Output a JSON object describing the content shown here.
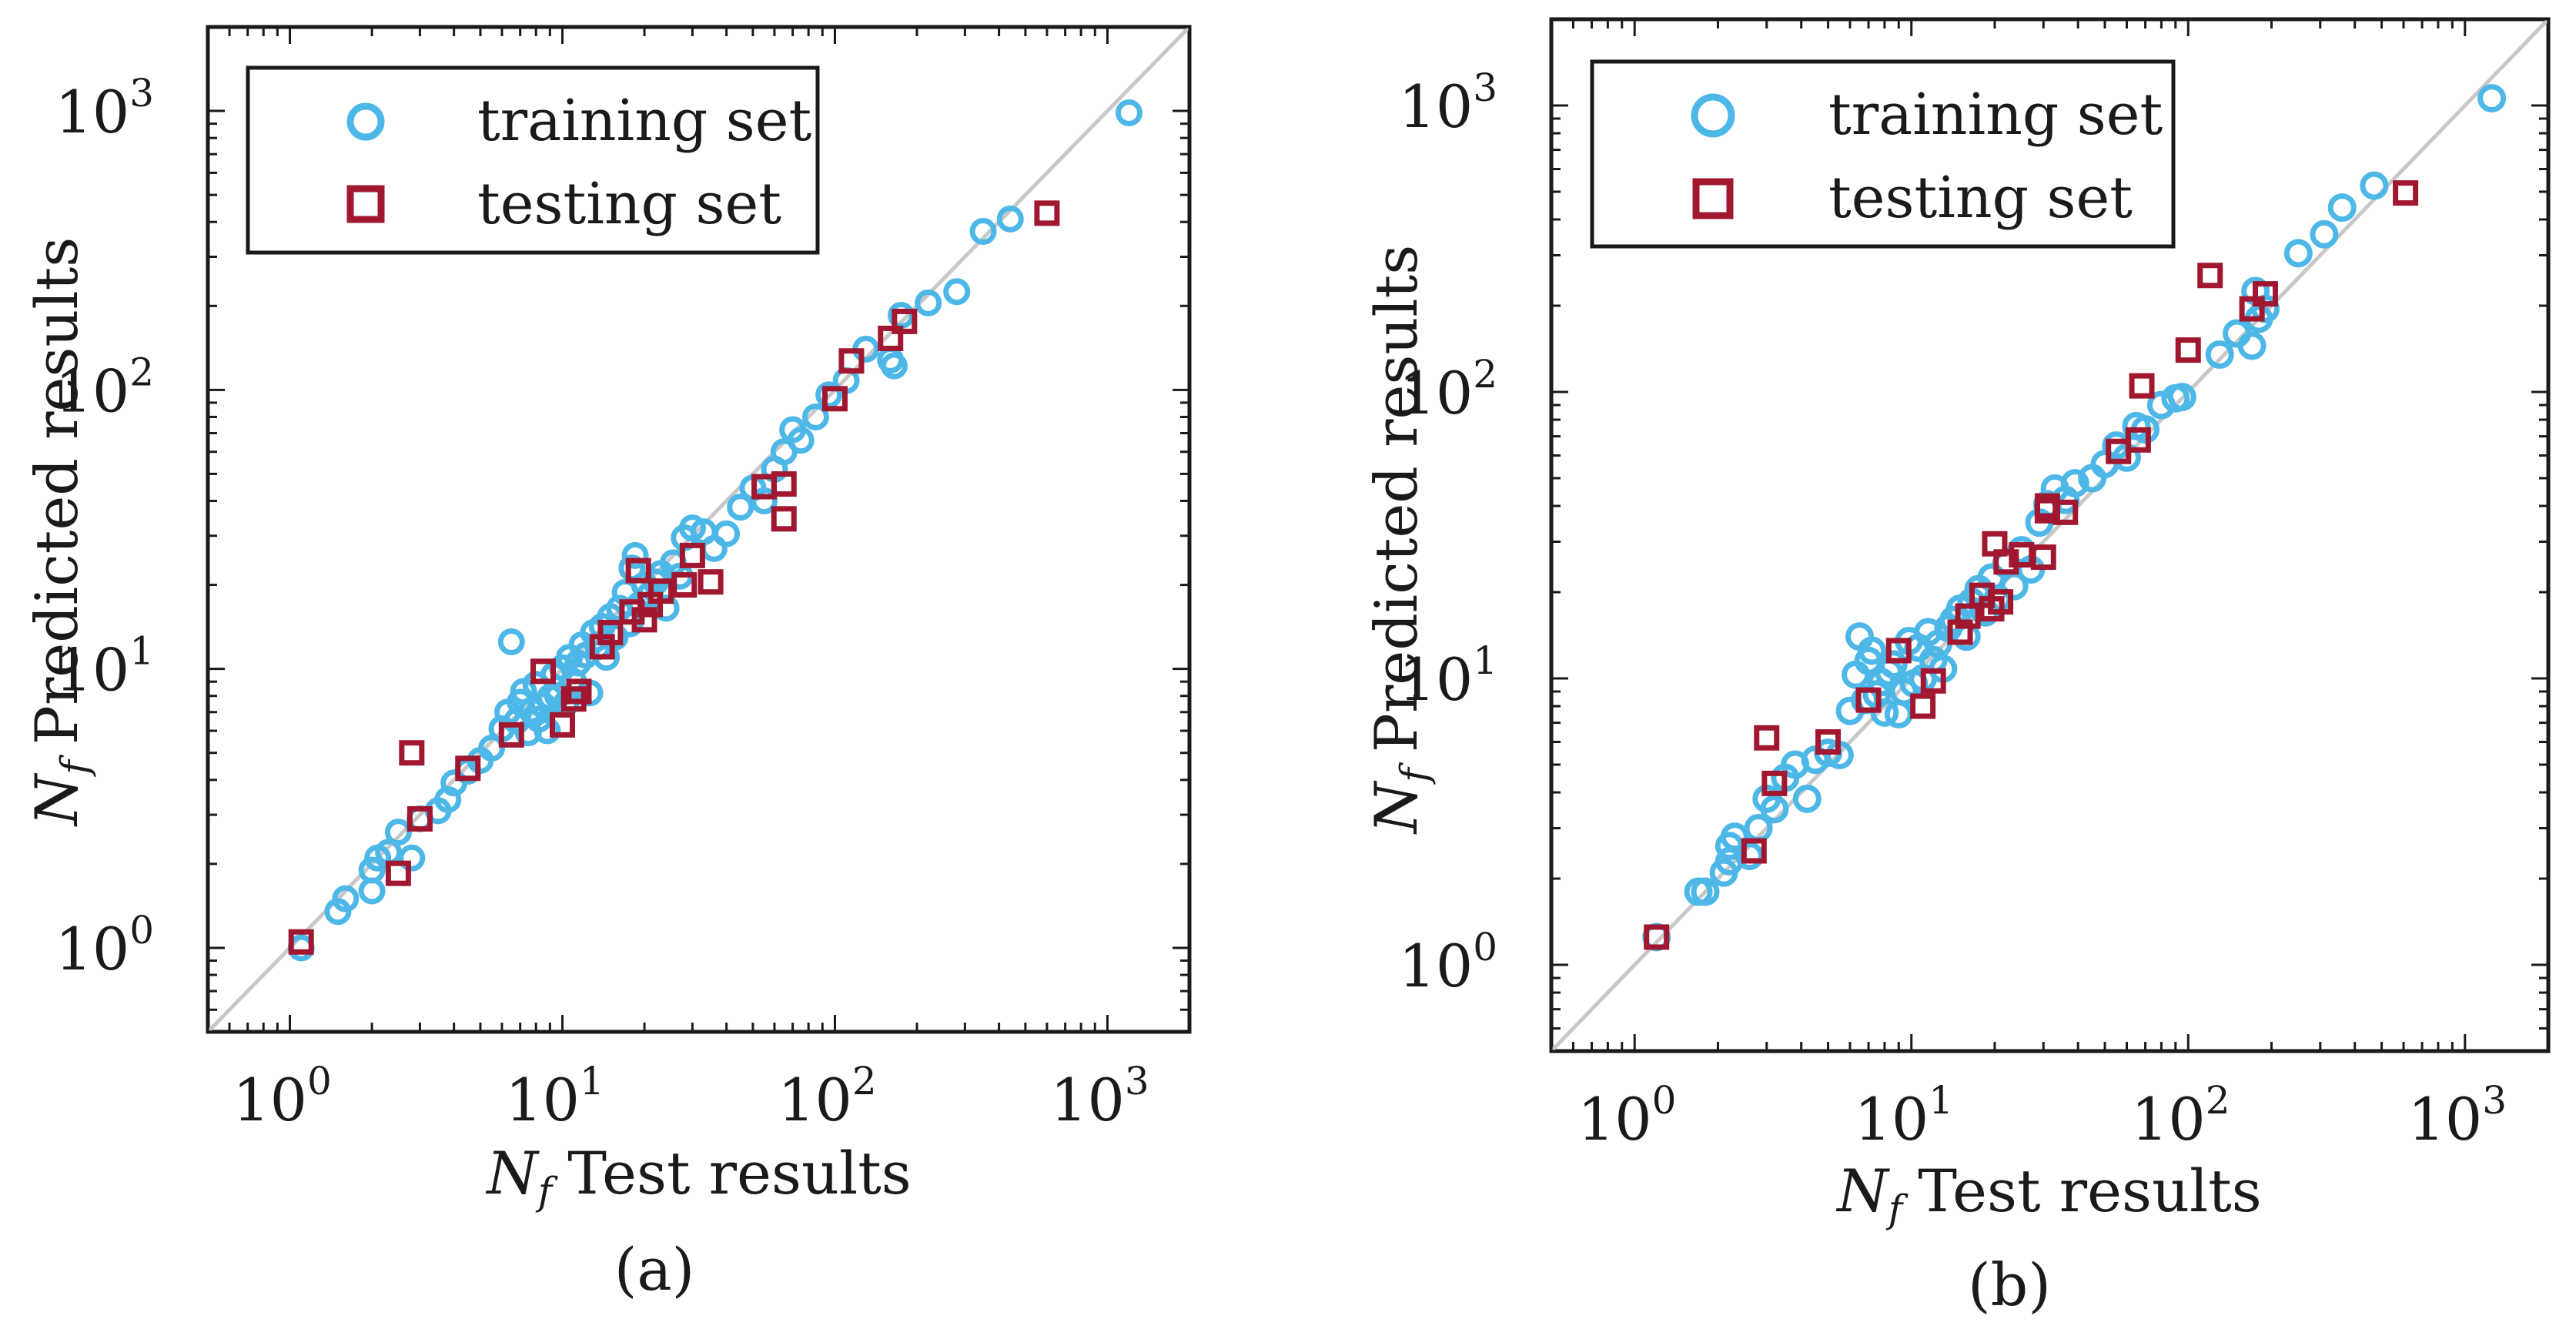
{
  "chart_data": [
    {
      "type": "scatter",
      "panel_label": "(a)",
      "xscale": "log",
      "yscale": "log",
      "xlim": [
        0.5,
        2000
      ],
      "ylim": [
        0.5,
        2000
      ],
      "xlabel": {
        "symbol": "N",
        "subscript": "f",
        "text": "Test results"
      },
      "ylabel": {
        "symbol": "N",
        "subscript": "f",
        "text": "Predicted results"
      },
      "xticks": [
        {
          "base": "10",
          "exp": "0",
          "value": 1
        },
        {
          "base": "10",
          "exp": "1",
          "value": 10
        },
        {
          "base": "10",
          "exp": "2",
          "value": 100
        },
        {
          "base": "10",
          "exp": "3",
          "value": 1000
        }
      ],
      "yticks": [
        {
          "base": "10",
          "exp": "0",
          "value": 1
        },
        {
          "base": "10",
          "exp": "1",
          "value": 10
        },
        {
          "base": "10",
          "exp": "2",
          "value": 100
        },
        {
          "base": "10",
          "exp": "3",
          "value": 1000
        }
      ],
      "reference_line": "y = x",
      "legend_position": "top-left",
      "series": [
        {
          "name": "training set",
          "marker": "circle",
          "color": "#4DB8E8",
          "points": [
            [
              1.1,
              1.0
            ],
            [
              1.5,
              1.35
            ],
            [
              1.6,
              1.5
            ],
            [
              2.0,
              1.6
            ],
            [
              2.0,
              1.9
            ],
            [
              2.1,
              2.1
            ],
            [
              2.3,
              2.2
            ],
            [
              2.5,
              2.6
            ],
            [
              2.8,
              2.1
            ],
            [
              3.0,
              2.9
            ],
            [
              3.5,
              3.1
            ],
            [
              3.8,
              3.4
            ],
            [
              4.0,
              3.9
            ],
            [
              4.5,
              4.3
            ],
            [
              5.0,
              4.7
            ],
            [
              5.5,
              5.2
            ],
            [
              6.0,
              6.1
            ],
            [
              6.3,
              7.0
            ],
            [
              6.5,
              12.5
            ],
            [
              6.8,
              6.5
            ],
            [
              7.0,
              7.6
            ],
            [
              7.2,
              8.3
            ],
            [
              7.5,
              5.9
            ],
            [
              7.7,
              7.1
            ],
            [
              8.0,
              8.8
            ],
            [
              8.2,
              6.6
            ],
            [
              8.5,
              7.4
            ],
            [
              8.8,
              6.0
            ],
            [
              9.0,
              7.9
            ],
            [
              9.3,
              9.5
            ],
            [
              9.6,
              8.0
            ],
            [
              10.0,
              10.1
            ],
            [
              10.3,
              7.5
            ],
            [
              10.6,
              11.0
            ],
            [
              11.0,
              9.0
            ],
            [
              11.4,
              10.5
            ],
            [
              11.8,
              12.2
            ],
            [
              12.2,
              11.2
            ],
            [
              12.6,
              8.2
            ],
            [
              13.0,
              13.5
            ],
            [
              13.5,
              12.0
            ],
            [
              14.0,
              14.2
            ],
            [
              14.5,
              11.0
            ],
            [
              15.0,
              15.4
            ],
            [
              15.6,
              13.0
            ],
            [
              16.2,
              16.5
            ],
            [
              17.0,
              18.8
            ],
            [
              17.7,
              14.5
            ],
            [
              18.0,
              23.0
            ],
            [
              18.5,
              25.5
            ],
            [
              19.2,
              17.0
            ],
            [
              20.0,
              20.0
            ],
            [
              21.0,
              18.5
            ],
            [
              22.0,
              20.5
            ],
            [
              23.0,
              22.0
            ],
            [
              24.0,
              16.5
            ],
            [
              25.5,
              24.0
            ],
            [
              27.0,
              21.5
            ],
            [
              28.0,
              29.5
            ],
            [
              30.0,
              32.0
            ],
            [
              33.0,
              31.0
            ],
            [
              36.0,
              27.0
            ],
            [
              40.0,
              30.5
            ],
            [
              45.0,
              38.0
            ],
            [
              50.0,
              44.5
            ],
            [
              55.0,
              40.0
            ],
            [
              60.0,
              52.0
            ],
            [
              65.0,
              60.0
            ],
            [
              70.0,
              72.0
            ],
            [
              75.0,
              66.0
            ],
            [
              85.0,
              80.0
            ],
            [
              95.0,
              96.0
            ],
            [
              110.0,
              108.0
            ],
            [
              130.0,
              140.0
            ],
            [
              160.0,
              128.0
            ],
            [
              165.0,
              122.0
            ],
            [
              175.0,
              185.0
            ],
            [
              220.0,
              205.0
            ],
            [
              280.0,
              225.0
            ],
            [
              350.0,
              370.0
            ],
            [
              440.0,
              410.0
            ],
            [
              1200.0,
              985.0
            ]
          ]
        },
        {
          "name": "testing set",
          "marker": "square",
          "color": "#A0172F",
          "points": [
            [
              1.1,
              1.05
            ],
            [
              2.5,
              1.85
            ],
            [
              2.8,
              5.0
            ],
            [
              3.0,
              2.9
            ],
            [
              4.5,
              4.4
            ],
            [
              6.5,
              5.8
            ],
            [
              8.5,
              9.8
            ],
            [
              10.0,
              6.3
            ],
            [
              11.0,
              7.8
            ],
            [
              11.5,
              8.3
            ],
            [
              14.0,
              12.0
            ],
            [
              15.0,
              13.5
            ],
            [
              18.0,
              16.0
            ],
            [
              19.0,
              22.5
            ],
            [
              20.0,
              15.0
            ],
            [
              21.0,
              17.0
            ],
            [
              23.0,
              19.0
            ],
            [
              28.0,
              20.0
            ],
            [
              30.0,
              25.5
            ],
            [
              35.0,
              20.5
            ],
            [
              55.0,
              45.0
            ],
            [
              65.0,
              46.0
            ],
            [
              65.0,
              34.5
            ],
            [
              100.0,
              93.0
            ],
            [
              115.0,
              127.0
            ],
            [
              160.0,
              153.0
            ],
            [
              180.0,
              176.0
            ],
            [
              600.0,
              430.0
            ]
          ]
        }
      ]
    },
    {
      "type": "scatter",
      "panel_label": "(b)",
      "xscale": "log",
      "yscale": "log",
      "xlim": [
        0.5,
        2000
      ],
      "ylim": [
        0.5,
        2000
      ],
      "xlabel": {
        "symbol": "N",
        "subscript": "f",
        "text": "Test results"
      },
      "ylabel": {
        "symbol": "N",
        "subscript": "f",
        "text": "Predicted results"
      },
      "xticks": [
        {
          "base": "10",
          "exp": "0",
          "value": 1
        },
        {
          "base": "10",
          "exp": "1",
          "value": 10
        },
        {
          "base": "10",
          "exp": "2",
          "value": 100
        },
        {
          "base": "10",
          "exp": "3",
          "value": 1000
        }
      ],
      "yticks": [
        {
          "base": "10",
          "exp": "0",
          "value": 1
        },
        {
          "base": "10",
          "exp": "1",
          "value": 10
        },
        {
          "base": "10",
          "exp": "2",
          "value": 100
        },
        {
          "base": "10",
          "exp": "3",
          "value": 1000
        }
      ],
      "reference_line": "y = x",
      "legend_position": "top-left",
      "series": [
        {
          "name": "training set",
          "marker": "circle",
          "color": "#4DB8E8",
          "points": [
            [
              1.2,
              1.25
            ],
            [
              1.7,
              1.8
            ],
            [
              1.8,
              1.8
            ],
            [
              2.1,
              2.1
            ],
            [
              2.2,
              2.3
            ],
            [
              2.2,
              2.6
            ],
            [
              2.3,
              2.8
            ],
            [
              2.6,
              2.4
            ],
            [
              2.8,
              3.0
            ],
            [
              3.0,
              3.8
            ],
            [
              3.2,
              3.5
            ],
            [
              3.5,
              4.5
            ],
            [
              3.8,
              5.0
            ],
            [
              4.2,
              3.8
            ],
            [
              4.5,
              5.2
            ],
            [
              5.0,
              5.5
            ],
            [
              5.5,
              5.4
            ],
            [
              6.0,
              7.7
            ],
            [
              6.3,
              10.3
            ],
            [
              6.5,
              14.0
            ],
            [
              6.8,
              8.4
            ],
            [
              7.0,
              11.5
            ],
            [
              7.2,
              12.5
            ],
            [
              7.5,
              8.8
            ],
            [
              7.8,
              9.7
            ],
            [
              8.0,
              7.6
            ],
            [
              8.3,
              10.5
            ],
            [
              8.6,
              11.2
            ],
            [
              9.0,
              7.5
            ],
            [
              9.4,
              9.0
            ],
            [
              9.8,
              13.5
            ],
            [
              10.2,
              9.6
            ],
            [
              10.6,
              12.8
            ],
            [
              11.0,
              10.0
            ],
            [
              11.5,
              14.5
            ],
            [
              12.0,
              11.6
            ],
            [
              12.5,
              13.2
            ],
            [
              13.0,
              10.8
            ],
            [
              13.6,
              15.0
            ],
            [
              14.2,
              16.0
            ],
            [
              15.0,
              17.5
            ],
            [
              15.8,
              14.0
            ],
            [
              16.5,
              18.5
            ],
            [
              17.5,
              20.5
            ],
            [
              18.5,
              17.0
            ],
            [
              19.5,
              22.5
            ],
            [
              20.5,
              19.0
            ],
            [
              22.0,
              25.0
            ],
            [
              23.5,
              21.0
            ],
            [
              25.0,
              28.0
            ],
            [
              27.0,
              24.0
            ],
            [
              29.0,
              35.0
            ],
            [
              31.0,
              40.5
            ],
            [
              33.0,
              46.0
            ],
            [
              36.0,
              42.0
            ],
            [
              39.0,
              48.0
            ],
            [
              45.0,
              50.0
            ],
            [
              50.0,
              56.0
            ],
            [
              55.0,
              65.0
            ],
            [
              60.0,
              59.0
            ],
            [
              65.0,
              76.0
            ],
            [
              70.0,
              74.0
            ],
            [
              80.0,
              90.0
            ],
            [
              90.0,
              95.0
            ],
            [
              95.0,
              96.0
            ],
            [
              130.0,
              135.0
            ],
            [
              150.0,
              160.0
            ],
            [
              170.0,
              145.0
            ],
            [
              175.0,
              225.0
            ],
            [
              180.0,
              180.0
            ],
            [
              190.0,
              195.0
            ],
            [
              250.0,
              305.0
            ],
            [
              310.0,
              355.0
            ],
            [
              360.0,
              440.0
            ],
            [
              470.0,
              525.0
            ],
            [
              1250.0,
              1060.0
            ]
          ]
        },
        {
          "name": "testing set",
          "marker": "square",
          "color": "#A0172F",
          "points": [
            [
              1.2,
              1.25
            ],
            [
              2.7,
              2.5
            ],
            [
              3.0,
              6.2
            ],
            [
              3.2,
              4.3
            ],
            [
              5.0,
              6.0
            ],
            [
              7.0,
              8.4
            ],
            [
              9.0,
              12.5
            ],
            [
              11.0,
              8.0
            ],
            [
              12.0,
              9.8
            ],
            [
              15.0,
              14.5
            ],
            [
              16.0,
              16.5
            ],
            [
              18.0,
              19.5
            ],
            [
              19.5,
              17.5
            ],
            [
              20.0,
              29.5
            ],
            [
              21.0,
              18.5
            ],
            [
              22.0,
              25.5
            ],
            [
              25.0,
              27.0
            ],
            [
              30.0,
              26.5
            ],
            [
              31.0,
              40.0
            ],
            [
              31.0,
              38.5
            ],
            [
              36.0,
              38.0
            ],
            [
              56.0,
              62.0
            ],
            [
              66.0,
              68.0
            ],
            [
              68.0,
              105.0
            ],
            [
              100.0,
              140.0
            ],
            [
              120.0,
              255.0
            ],
            [
              170.0,
              195.0
            ],
            [
              190.0,
              220.0
            ],
            [
              610.0,
              495.0
            ]
          ]
        }
      ]
    }
  ]
}
